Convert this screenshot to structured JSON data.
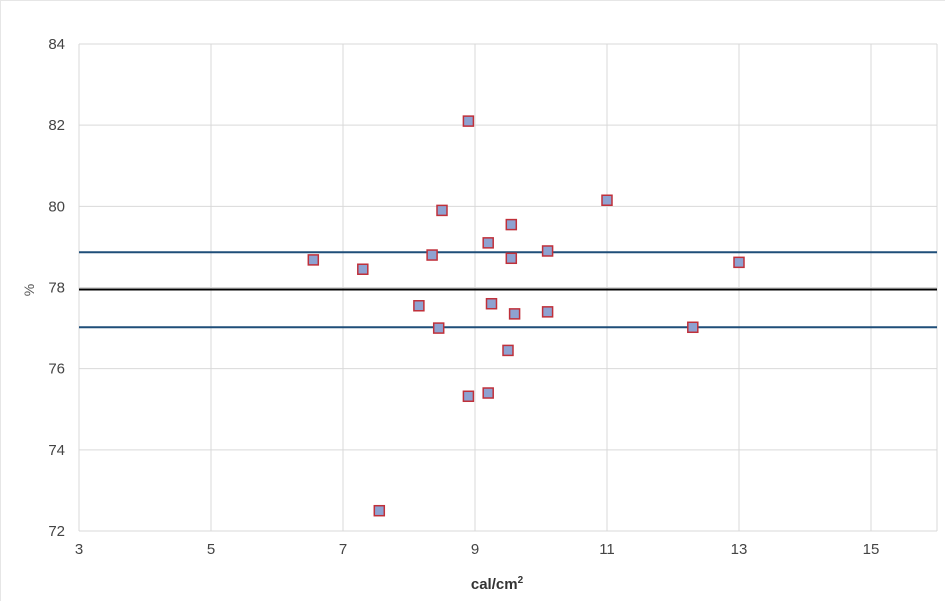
{
  "chart_data": {
    "type": "scatter",
    "title": "",
    "xlabel": "cal/cm",
    "xlabel_sup": "2",
    "ylabel": "%",
    "xlim": [
      3,
      16
    ],
    "ylim": [
      72,
      84
    ],
    "x_ticks": [
      "3",
      "5",
      "7",
      "9",
      "11",
      "13",
      "15"
    ],
    "y_ticks": [
      "72",
      "74",
      "76",
      "78",
      "80",
      "82",
      "84"
    ],
    "grid": true,
    "legend": "none",
    "series": [
      {
        "marker": "square",
        "fill": "#8ea2d1",
        "stroke": "#c0303a",
        "points": [
          {
            "x": 8.9,
            "y": 82.1
          },
          {
            "x": 11.0,
            "y": 80.15
          },
          {
            "x": 8.5,
            "y": 79.9
          },
          {
            "x": 9.55,
            "y": 79.55
          },
          {
            "x": 9.2,
            "y": 79.1
          },
          {
            "x": 10.1,
            "y": 78.9
          },
          {
            "x": 8.35,
            "y": 78.8
          },
          {
            "x": 9.55,
            "y": 78.72
          },
          {
            "x": 6.55,
            "y": 78.68
          },
          {
            "x": 13.0,
            "y": 78.62
          },
          {
            "x": 7.3,
            "y": 78.45
          },
          {
            "x": 9.25,
            "y": 77.6
          },
          {
            "x": 8.15,
            "y": 77.55
          },
          {
            "x": 10.1,
            "y": 77.4
          },
          {
            "x": 9.6,
            "y": 77.35
          },
          {
            "x": 8.45,
            "y": 77.0
          },
          {
            "x": 12.3,
            "y": 77.02
          },
          {
            "x": 9.5,
            "y": 76.45
          },
          {
            "x": 9.2,
            "y": 75.4
          },
          {
            "x": 8.9,
            "y": 75.32
          },
          {
            "x": 7.55,
            "y": 72.5
          }
        ]
      }
    ],
    "reference_lines": [
      {
        "y": 78.87,
        "color": "#1f4e79"
      },
      {
        "y": 77.95,
        "color": "#000000"
      },
      {
        "y": 77.02,
        "color": "#1f4e79"
      }
    ]
  }
}
